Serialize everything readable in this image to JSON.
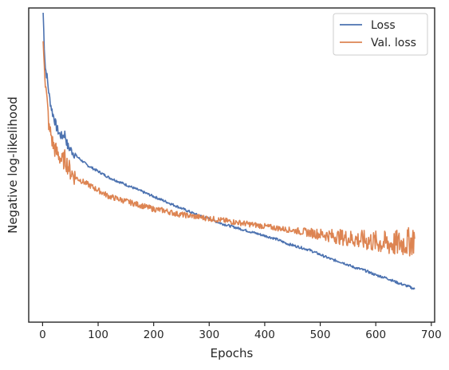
{
  "chart_data": {
    "type": "line",
    "title": "",
    "xlabel": "Epochs",
    "ylabel": "Negative log-likelihood",
    "xlim": [
      -25,
      706
    ],
    "ylim": [
      0,
      1
    ],
    "xticks": [
      0,
      100,
      200,
      300,
      400,
      500,
      600,
      700
    ],
    "xtick_labels": [
      "0",
      "100",
      "200",
      "300",
      "400",
      "500",
      "600",
      "700"
    ],
    "yticks_labeled": false,
    "grid": false,
    "legend_position": "top-right",
    "series": [
      {
        "name": "Loss",
        "color": "#4c72b0",
        "x": [
          1,
          3,
          5,
          8,
          10,
          12,
          15,
          18,
          20,
          25,
          30,
          35,
          40,
          45,
          50,
          60,
          70,
          80,
          90,
          100,
          120,
          140,
          160,
          180,
          200,
          220,
          240,
          260,
          280,
          300,
          320,
          340,
          360,
          380,
          400,
          420,
          440,
          460,
          480,
          500,
          520,
          540,
          560,
          580,
          600,
          620,
          640,
          660,
          670
        ],
        "y": [
          0.985,
          0.88,
          0.81,
          0.78,
          0.75,
          0.72,
          0.69,
          0.665,
          0.655,
          0.62,
          0.6,
          0.59,
          0.6,
          0.56,
          0.55,
          0.53,
          0.515,
          0.5,
          0.49,
          0.48,
          0.46,
          0.445,
          0.43,
          0.415,
          0.4,
          0.385,
          0.37,
          0.355,
          0.34,
          0.33,
          0.315,
          0.305,
          0.295,
          0.285,
          0.275,
          0.265,
          0.25,
          0.24,
          0.23,
          0.215,
          0.2,
          0.19,
          0.175,
          0.165,
          0.15,
          0.14,
          0.125,
          0.113,
          0.105
        ]
      },
      {
        "name": "Val. loss",
        "color": "#dd8452",
        "x": [
          1,
          3,
          5,
          8,
          10,
          12,
          15,
          18,
          20,
          25,
          30,
          35,
          40,
          45,
          50,
          60,
          70,
          80,
          90,
          100,
          120,
          140,
          160,
          180,
          200,
          220,
          240,
          260,
          280,
          300,
          320,
          340,
          360,
          380,
          400,
          420,
          440,
          460,
          480,
          500,
          520,
          540,
          560,
          580,
          600,
          620,
          640,
          660,
          670
        ],
        "y": [
          0.89,
          0.84,
          0.76,
          0.7,
          0.66,
          0.61,
          0.6,
          0.57,
          0.56,
          0.54,
          0.53,
          0.51,
          0.52,
          0.5,
          0.48,
          0.46,
          0.45,
          0.44,
          0.43,
          0.42,
          0.4,
          0.39,
          0.38,
          0.37,
          0.36,
          0.355,
          0.345,
          0.34,
          0.335,
          0.33,
          0.325,
          0.32,
          0.315,
          0.31,
          0.305,
          0.3,
          0.295,
          0.29,
          0.285,
          0.28,
          0.275,
          0.27,
          0.265,
          0.26,
          0.255,
          0.25,
          0.25,
          0.255,
          0.265
        ]
      }
    ]
  }
}
